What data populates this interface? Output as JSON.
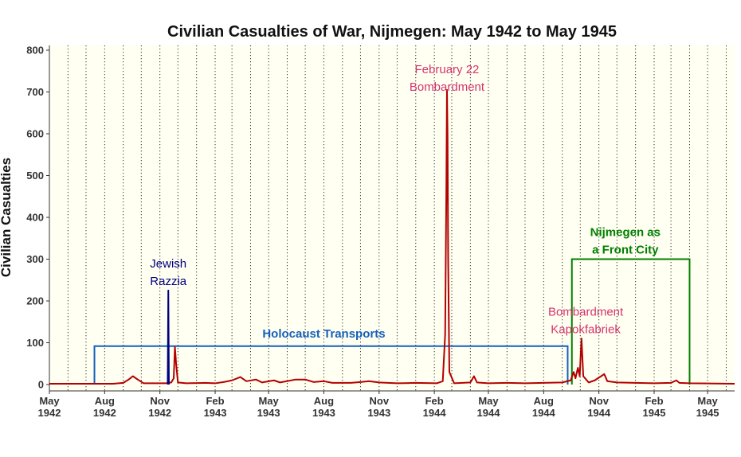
{
  "chart_data": {
    "type": "line",
    "title": "Civilian Casualties of War, Nijmegen: May 1942 to May 1945",
    "xlabel": "",
    "ylabel": "Civilian Casualties",
    "xlim": [
      "1942-05-01",
      "1945-06-15"
    ],
    "ylim": [
      0,
      800
    ],
    "yticks": [
      0,
      100,
      200,
      300,
      400,
      500,
      600,
      700,
      800
    ],
    "xticks": [
      {
        "date": "1942-05-01",
        "month": "May",
        "year": "1942"
      },
      {
        "date": "1942-08-01",
        "month": "Aug",
        "year": "1942"
      },
      {
        "date": "1942-11-01",
        "month": "Nov",
        "year": "1942"
      },
      {
        "date": "1943-02-01",
        "month": "Feb",
        "year": "1943"
      },
      {
        "date": "1943-05-01",
        "month": "May",
        "year": "1943"
      },
      {
        "date": "1943-08-01",
        "month": "Aug",
        "year": "1943"
      },
      {
        "date": "1943-11-01",
        "month": "Nov",
        "year": "1943"
      },
      {
        "date": "1944-02-01",
        "month": "Feb",
        "year": "1944"
      },
      {
        "date": "1944-05-01",
        "month": "May",
        "year": "1944"
      },
      {
        "date": "1944-08-01",
        "month": "Aug",
        "year": "1944"
      },
      {
        "date": "1944-11-01",
        "month": "Nov",
        "year": "1944"
      },
      {
        "date": "1945-02-01",
        "month": "Feb",
        "year": "1945"
      },
      {
        "date": "1945-05-01",
        "month": "May",
        "year": "1945"
      }
    ],
    "grid": "monthly vertical dotted lines",
    "background_color": "#fffff2",
    "series": [
      {
        "color": "#b30000",
        "points": [
          [
            "1942-05-01",
            2
          ],
          [
            "1942-07-01",
            2
          ],
          [
            "1942-08-15",
            2
          ],
          [
            "1942-09-01",
            4
          ],
          [
            "1942-09-10",
            12
          ],
          [
            "1942-09-17",
            20
          ],
          [
            "1942-09-25",
            12
          ],
          [
            "1942-10-05",
            3
          ],
          [
            "1942-11-10",
            3
          ],
          [
            "1942-11-20",
            5
          ],
          [
            "1942-11-24",
            15
          ],
          [
            "1942-11-26",
            90
          ],
          [
            "1942-11-28",
            50
          ],
          [
            "1942-12-01",
            5
          ],
          [
            "1942-12-15",
            3
          ],
          [
            "1943-01-15",
            4
          ],
          [
            "1943-02-01",
            3
          ],
          [
            "1943-02-15",
            6
          ],
          [
            "1943-03-01",
            10
          ],
          [
            "1943-03-15",
            18
          ],
          [
            "1943-03-25",
            8
          ],
          [
            "1943-04-10",
            12
          ],
          [
            "1943-04-20",
            5
          ],
          [
            "1943-05-10",
            10
          ],
          [
            "1943-05-20",
            5
          ],
          [
            "1943-06-15",
            12
          ],
          [
            "1943-07-01",
            12
          ],
          [
            "1943-07-15",
            6
          ],
          [
            "1943-08-01",
            8
          ],
          [
            "1943-08-15",
            4
          ],
          [
            "1943-09-15",
            4
          ],
          [
            "1943-10-01",
            6
          ],
          [
            "1943-10-15",
            8
          ],
          [
            "1943-11-01",
            5
          ],
          [
            "1943-12-01",
            3
          ],
          [
            "1944-01-01",
            4
          ],
          [
            "1944-02-05",
            3
          ],
          [
            "1944-02-15",
            8
          ],
          [
            "1944-02-19",
            120
          ],
          [
            "1944-02-21",
            470
          ],
          [
            "1944-02-22",
            705
          ],
          [
            "1944-02-23",
            590
          ],
          [
            "1944-02-24",
            300
          ],
          [
            "1944-02-26",
            30
          ],
          [
            "1944-03-05",
            3
          ],
          [
            "1944-04-01",
            5
          ],
          [
            "1944-04-07",
            20
          ],
          [
            "1944-04-12",
            5
          ],
          [
            "1944-05-01",
            3
          ],
          [
            "1944-06-01",
            4
          ],
          [
            "1944-07-01",
            3
          ],
          [
            "1944-08-01",
            4
          ],
          [
            "1944-09-01",
            5
          ],
          [
            "1944-09-15",
            10
          ],
          [
            "1944-09-20",
            30
          ],
          [
            "1944-09-23",
            15
          ],
          [
            "1944-09-27",
            40
          ],
          [
            "1944-09-30",
            20
          ],
          [
            "1944-10-03",
            110
          ],
          [
            "1944-10-06",
            20
          ],
          [
            "1944-10-15",
            5
          ],
          [
            "1944-10-25",
            10
          ],
          [
            "1944-11-10",
            25
          ],
          [
            "1944-11-15",
            8
          ],
          [
            "1944-12-01",
            5
          ],
          [
            "1945-01-01",
            4
          ],
          [
            "1945-02-01",
            3
          ],
          [
            "1945-03-01",
            4
          ],
          [
            "1945-03-10",
            10
          ],
          [
            "1945-03-15",
            4
          ],
          [
            "1945-04-01",
            3
          ],
          [
            "1945-06-15",
            2
          ]
        ]
      },
      {
        "color": "#000080",
        "points": [
          [
            "1942-11-14",
            0
          ],
          [
            "1942-11-15",
            225
          ],
          [
            "1942-11-16",
            0
          ]
        ]
      }
    ],
    "annotations": [
      {
        "lines": [
          "February 22",
          "Bombardment"
        ],
        "x": "1944-02-22",
        "y": 745,
        "color": "#d6336c",
        "bold": false
      },
      {
        "lines": [
          "Jewish",
          "Razzia"
        ],
        "x": "1942-11-15",
        "y": 280,
        "color": "#000080",
        "bold": false
      },
      {
        "lines": [
          "Bombardment",
          "Kapokfabriek"
        ],
        "x": "1944-10-10",
        "y": 165,
        "color": "#d6336c",
        "bold": false
      },
      {
        "lines": [
          "Holocaust Transports"
        ],
        "x": "1943-08-01",
        "y": 112,
        "color": "#1560bd",
        "bold": true
      },
      {
        "lines": [
          "Nijmegen as",
          "a Front City"
        ],
        "x": "1944-12-15",
        "y": 355,
        "color": "#008000",
        "bold": true
      }
    ],
    "periods": [
      {
        "label": "Holocaust Transports",
        "start": "1942-07-15",
        "end": "1944-09-10",
        "y": 92,
        "color": "#1560bd"
      },
      {
        "label": "Nijmegen as a Front City",
        "start": "1944-09-17",
        "end": "1945-04-01",
        "y": 300,
        "color": "#008000"
      }
    ]
  }
}
